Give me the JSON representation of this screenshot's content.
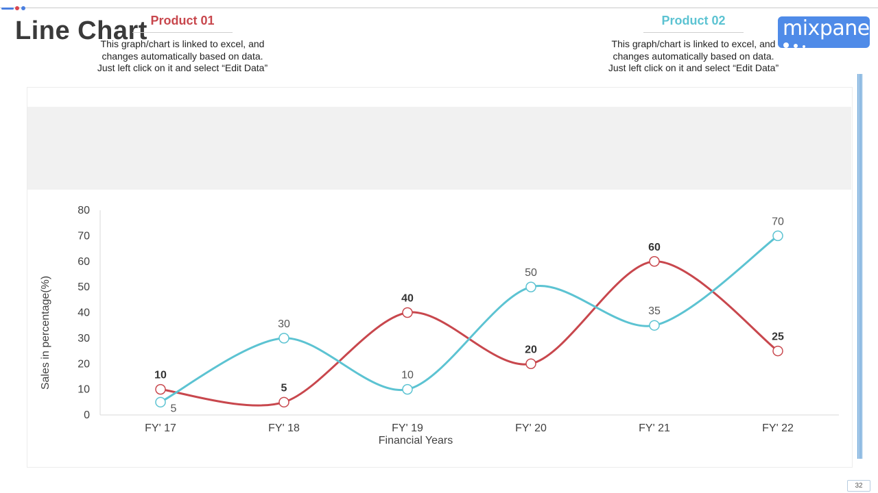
{
  "slide": {
    "title": "Line Chart",
    "page_number": "32",
    "logo_text": "mixpanel"
  },
  "products": [
    {
      "title": "Product 01",
      "color": "#c8474d",
      "desc_lines": [
        "This graph/chart is linked to excel, and",
        "changes automatically based on data.",
        "Just left click on it and select “Edit Data”"
      ]
    },
    {
      "title": "Product 02",
      "color": "#5cc3d2",
      "desc_lines": [
        "This graph/chart is linked to excel, and",
        "changes automatically based on data.",
        "Just left click on it and select “Edit Data”"
      ]
    }
  ],
  "chart_data": {
    "type": "line",
    "categories": [
      "FY' 17",
      "FY' 18",
      "FY' 19",
      "FY' 20",
      "FY' 21",
      "FY' 22"
    ],
    "series": [
      {
        "name": "Product 01",
        "color": "#c8474d",
        "values": [
          10,
          5,
          40,
          20,
          60,
          25
        ],
        "label_weight": "bold"
      },
      {
        "name": "Product 02",
        "color": "#5cc3d2",
        "values": [
          5,
          30,
          10,
          50,
          35,
          70
        ],
        "label_weight": "normal"
      }
    ],
    "xlabel": "Financial Years",
    "ylabel": "Sales in percentage(%)",
    "ylim": [
      0,
      80
    ],
    "yticks": [
      0,
      10,
      20,
      30,
      40,
      50,
      60,
      70,
      80
    ],
    "grid": false,
    "legend": "none",
    "smooth": true
  }
}
